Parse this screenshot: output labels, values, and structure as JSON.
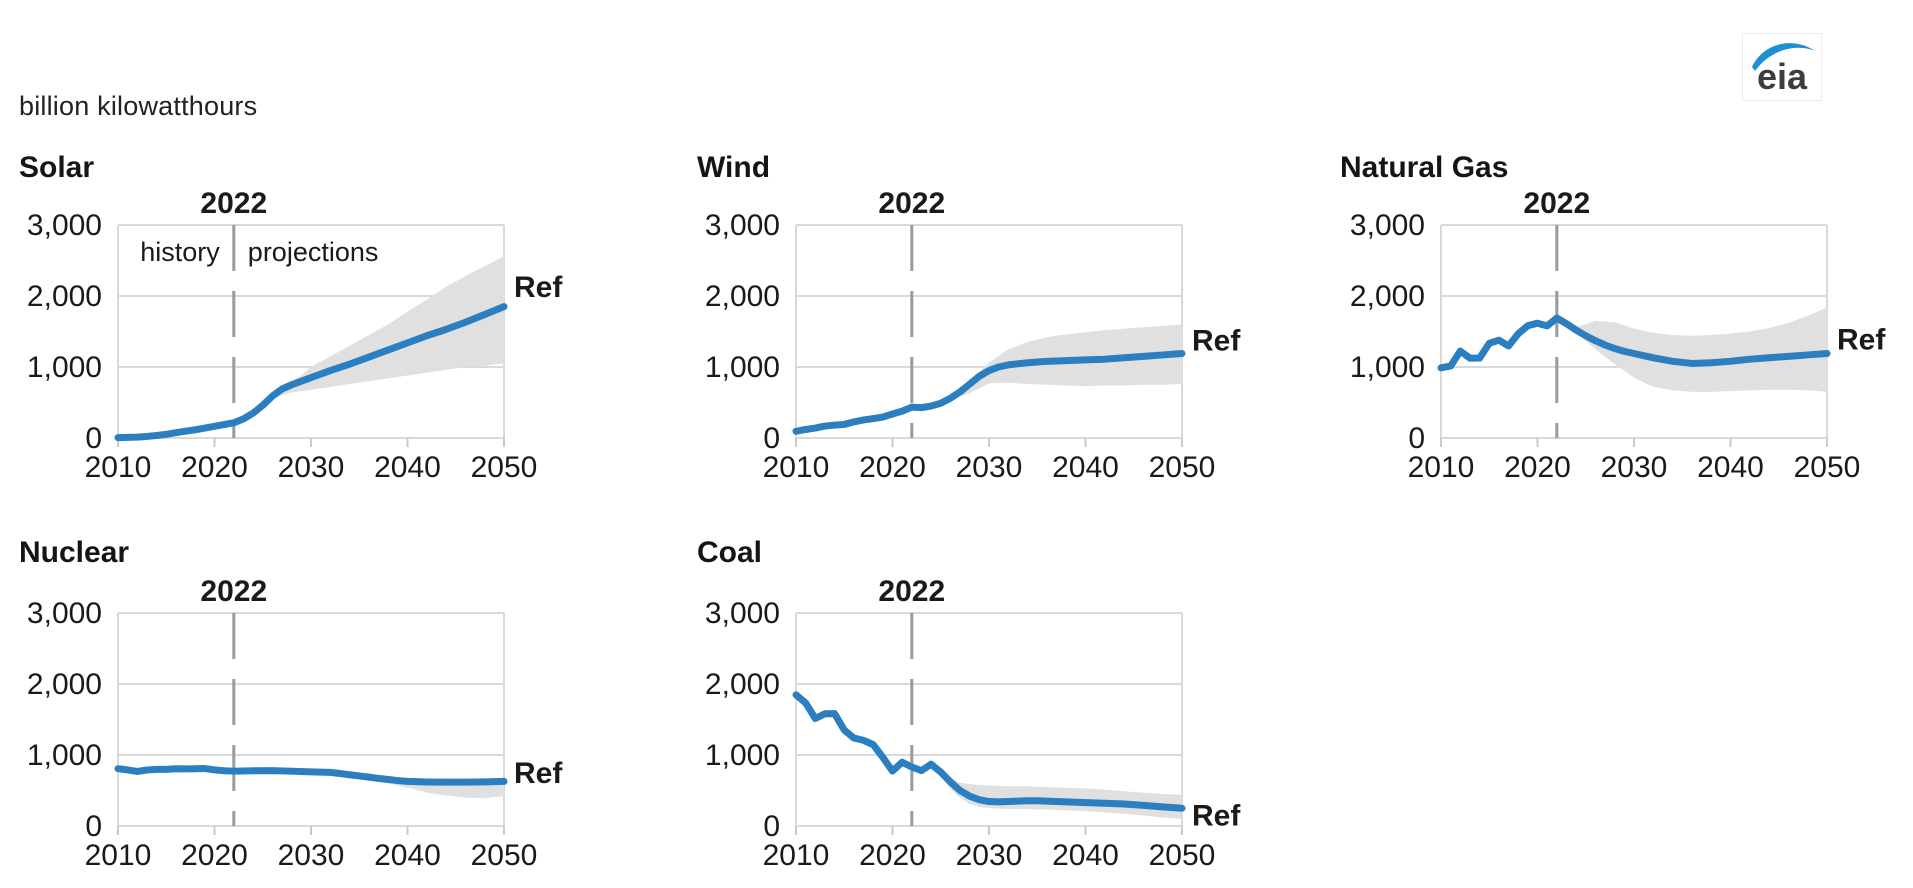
{
  "page": {
    "unit_label": "billion kilowatthours"
  },
  "logo": {
    "text": "eia",
    "accent_color": "#1e8fd1",
    "text_color": "#3d3d3d"
  },
  "colors": {
    "ref_line": "#2b7fc0",
    "band": "#e0e0e0",
    "grid": "#d9d9d9",
    "vline": "#9a9a9a",
    "tick": "#c9c9c9",
    "text": "#1a1a1a"
  },
  "axis": {
    "ylim": [
      0,
      3000
    ],
    "xlim": [
      2010,
      2050
    ],
    "yticks": [
      0,
      1000,
      2000,
      3000
    ],
    "ytick_labels": [
      "0",
      "1,000",
      "2,000",
      "3,000"
    ],
    "xticks": [
      2010,
      2020,
      2030,
      2040,
      2050
    ],
    "grid": "horizontal"
  },
  "chart_data": [
    {
      "type": "line",
      "title": "Solar",
      "vline": {
        "year": 2022,
        "label": "2022"
      },
      "annotations": {
        "history": "history",
        "projections": "projections"
      },
      "ref_label": "Ref",
      "ref_label_value": 2140,
      "series": {
        "name": "Reference case",
        "x": [
          2010,
          2011,
          2012,
          2013,
          2014,
          2015,
          2016,
          2017,
          2018,
          2019,
          2020,
          2021,
          2022,
          2023,
          2024,
          2025,
          2026,
          2027,
          2028,
          2029,
          2030,
          2032,
          2034,
          2036,
          2038,
          2040,
          2042,
          2044,
          2046,
          2048,
          2050
        ],
        "y": [
          5,
          8,
          13,
          22,
          35,
          52,
          75,
          96,
          115,
          140,
          165,
          190,
          215,
          270,
          350,
          460,
          590,
          690,
          750,
          800,
          850,
          950,
          1040,
          1140,
          1240,
          1340,
          1440,
          1530,
          1630,
          1740,
          1850
        ]
      },
      "band": {
        "name": "side-case range",
        "x": [
          2026,
          2027,
          2028,
          2029,
          2030,
          2032,
          2034,
          2036,
          2038,
          2040,
          2042,
          2044,
          2046,
          2048,
          2050
        ],
        "low": [
          560,
          600,
          640,
          660,
          680,
          720,
          760,
          800,
          840,
          880,
          920,
          960,
          1000,
          1020,
          1050
        ],
        "high": [
          620,
          720,
          800,
          880,
          1000,
          1150,
          1300,
          1450,
          1600,
          1780,
          1950,
          2130,
          2280,
          2420,
          2560
        ]
      }
    },
    {
      "type": "line",
      "title": "Wind",
      "vline": {
        "year": 2022,
        "label": "2022"
      },
      "ref_label": "Ref",
      "ref_label_value": 1390,
      "series": {
        "name": "Reference case",
        "x": [
          2010,
          2011,
          2012,
          2013,
          2014,
          2015,
          2016,
          2017,
          2018,
          2019,
          2020,
          2021,
          2022,
          2023,
          2024,
          2025,
          2026,
          2027,
          2028,
          2029,
          2030,
          2031,
          2032,
          2034,
          2036,
          2038,
          2040,
          2042,
          2044,
          2046,
          2048,
          2050
        ],
        "y": [
          95,
          120,
          140,
          168,
          182,
          191,
          227,
          254,
          273,
          295,
          338,
          378,
          434,
          428,
          450,
          490,
          560,
          650,
          760,
          870,
          950,
          1000,
          1030,
          1060,
          1080,
          1090,
          1100,
          1110,
          1130,
          1150,
          1170,
          1190
        ]
      },
      "band": {
        "name": "side-case range",
        "x": [
          2026,
          2028,
          2030,
          2032,
          2034,
          2036,
          2038,
          2040,
          2042,
          2044,
          2046,
          2048,
          2050
        ],
        "low": [
          545,
          630,
          770,
          780,
          760,
          750,
          740,
          730,
          740,
          740,
          750,
          750,
          760
        ],
        "high": [
          590,
          800,
          1060,
          1250,
          1350,
          1420,
          1460,
          1490,
          1520,
          1540,
          1560,
          1580,
          1600
        ]
      }
    },
    {
      "type": "line",
      "title": "Natural Gas",
      "vline": {
        "year": 2022,
        "label": "2022"
      },
      "ref_label": "Ref",
      "ref_label_value": 1400,
      "series": {
        "name": "Reference case",
        "x": [
          2010,
          2011,
          2012,
          2013,
          2014,
          2015,
          2016,
          2017,
          2018,
          2019,
          2020,
          2021,
          2022,
          2023,
          2024,
          2025,
          2026,
          2027,
          2028,
          2029,
          2030,
          2032,
          2034,
          2036,
          2038,
          2040,
          2042,
          2044,
          2046,
          2048,
          2050
        ],
        "y": [
          988,
          1013,
          1225,
          1124,
          1126,
          1333,
          1378,
          1296,
          1468,
          1582,
          1617,
          1579,
          1689,
          1610,
          1520,
          1440,
          1370,
          1310,
          1260,
          1220,
          1190,
          1130,
          1080,
          1050,
          1060,
          1080,
          1110,
          1130,
          1150,
          1170,
          1190
        ]
      },
      "band": {
        "name": "side-case range",
        "x": [
          2024,
          2026,
          2028,
          2030,
          2032,
          2034,
          2036,
          2038,
          2040,
          2042,
          2044,
          2046,
          2048,
          2050
        ],
        "low": [
          1480,
          1250,
          1040,
          850,
          720,
          670,
          650,
          650,
          660,
          670,
          680,
          680,
          670,
          650
        ],
        "high": [
          1560,
          1650,
          1630,
          1540,
          1480,
          1450,
          1440,
          1450,
          1470,
          1500,
          1550,
          1620,
          1720,
          1840
        ]
      }
    },
    {
      "type": "line",
      "title": "Nuclear",
      "vline": {
        "year": 2022,
        "label": "2022"
      },
      "ref_label": "Ref",
      "ref_label_value": 760,
      "series": {
        "name": "Reference case",
        "x": [
          2010,
          2011,
          2012,
          2013,
          2014,
          2015,
          2016,
          2017,
          2018,
          2019,
          2020,
          2021,
          2022,
          2023,
          2024,
          2026,
          2028,
          2030,
          2032,
          2033,
          2034,
          2035,
          2036,
          2037,
          2038,
          2039,
          2040,
          2042,
          2044,
          2046,
          2048,
          2050
        ],
        "y": [
          807,
          790,
          769,
          789,
          797,
          797,
          806,
          805,
          807,
          809,
          790,
          778,
          772,
          775,
          778,
          780,
          772,
          762,
          755,
          740,
          722,
          705,
          688,
          670,
          655,
          640,
          628,
          620,
          618,
          618,
          622,
          628
        ]
      },
      "band": {
        "name": "side-case range",
        "x": [
          2032,
          2034,
          2036,
          2038,
          2040,
          2042,
          2044,
          2046,
          2048,
          2050
        ],
        "low": [
          745,
          700,
          655,
          600,
          540,
          470,
          430,
          400,
          390,
          420
        ],
        "high": [
          762,
          735,
          705,
          675,
          655,
          645,
          638,
          636,
          640,
          650
        ]
      }
    },
    {
      "type": "line",
      "title": "Coal",
      "vline": {
        "year": 2022,
        "label": "2022"
      },
      "ref_label": "Ref",
      "ref_label_value": 160,
      "series": {
        "name": "Reference case",
        "x": [
          2010,
          2011,
          2012,
          2013,
          2014,
          2015,
          2016,
          2017,
          2018,
          2019,
          2020,
          2021,
          2022,
          2023,
          2024,
          2025,
          2026,
          2027,
          2028,
          2029,
          2030,
          2031,
          2032,
          2033,
          2034,
          2035,
          2036,
          2038,
          2040,
          2042,
          2044,
          2046,
          2048,
          2050
        ],
        "y": [
          1847,
          1733,
          1514,
          1581,
          1582,
          1352,
          1239,
          1206,
          1146,
          966,
          774,
          898,
          831,
          780,
          870,
          760,
          620,
          500,
          420,
          370,
          345,
          340,
          345,
          350,
          355,
          355,
          350,
          340,
          330,
          320,
          310,
          290,
          270,
          250
        ]
      },
      "band": {
        "name": "side-case range",
        "x": [
          2025,
          2026,
          2027,
          2028,
          2029,
          2030,
          2032,
          2034,
          2036,
          2038,
          2040,
          2042,
          2044,
          2046,
          2048,
          2050
        ],
        "low": [
          700,
          520,
          400,
          310,
          270,
          250,
          240,
          240,
          230,
          220,
          210,
          190,
          170,
          150,
          120,
          100
        ],
        "high": [
          800,
          680,
          610,
          590,
          580,
          570,
          560,
          560,
          550,
          540,
          530,
          510,
          490,
          470,
          450,
          440
        ]
      }
    }
  ]
}
